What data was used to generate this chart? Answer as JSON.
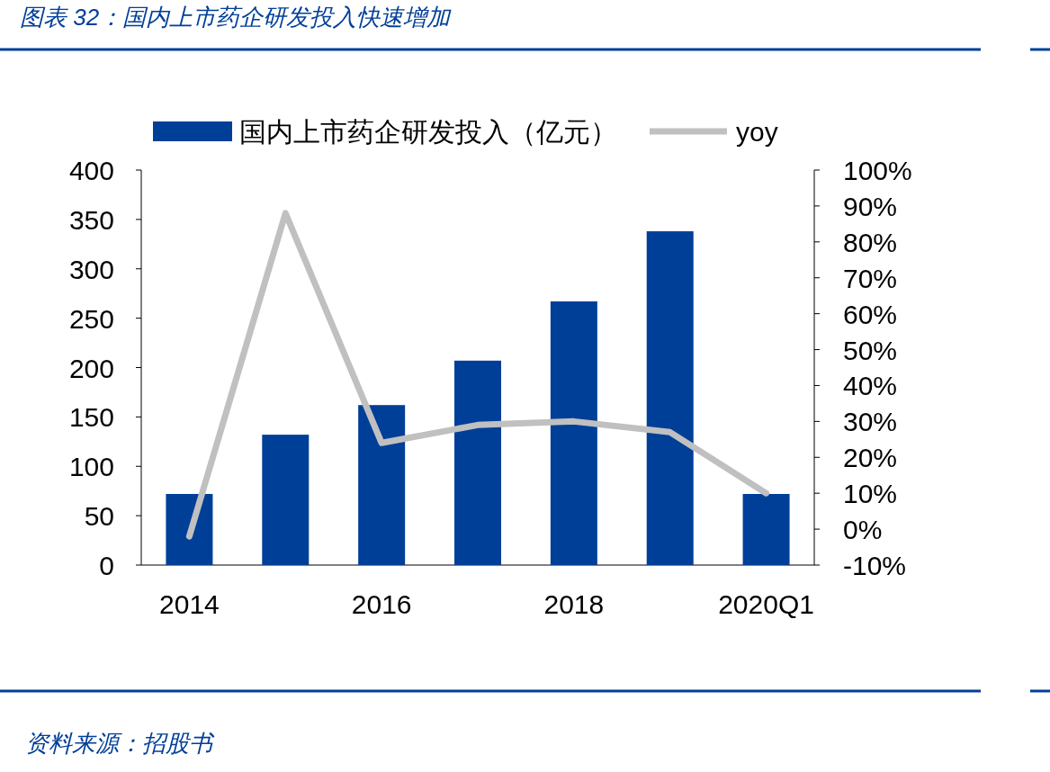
{
  "chart_data": {
    "type": "bar",
    "title": "图表 32：国内上市药企研发投入快速增加",
    "categories": [
      "2014",
      null,
      "2016",
      null,
      "2018",
      null,
      "2020Q1"
    ],
    "series": [
      {
        "name": "国内上市药企研发投入（亿元）",
        "color": "#003f98",
        "values": [
          72,
          132,
          162,
          207,
          267,
          338,
          72
        ]
      },
      {
        "name": "yoy",
        "type": "line",
        "axis": "y2",
        "color": "#c0c0c0",
        "values": [
          -2,
          88,
          24,
          29,
          30,
          27,
          10
        ]
      }
    ],
    "ylim": [
      0,
      400
    ],
    "yticks": [
      0,
      50,
      100,
      150,
      200,
      250,
      300,
      350,
      400
    ],
    "y2lim": [
      -10,
      100
    ],
    "y2ticks": [
      {
        "value": -10,
        "label": "-10%"
      },
      {
        "value": 0,
        "label": "0%"
      },
      {
        "value": 10,
        "label": "10%"
      },
      {
        "value": 20,
        "label": "20%"
      },
      {
        "value": 30,
        "label": "30%"
      },
      {
        "value": 40,
        "label": "40%"
      },
      {
        "value": 50,
        "label": "50%"
      },
      {
        "value": 60,
        "label": "60%"
      },
      {
        "value": 70,
        "label": "70%"
      },
      {
        "value": 80,
        "label": "80%"
      },
      {
        "value": 90,
        "label": "90%"
      },
      {
        "value": 100,
        "label": "100%"
      }
    ],
    "legend": "top",
    "grid": false,
    "marker": "none",
    "annotations": [
      "资料来源：招股书"
    ]
  }
}
